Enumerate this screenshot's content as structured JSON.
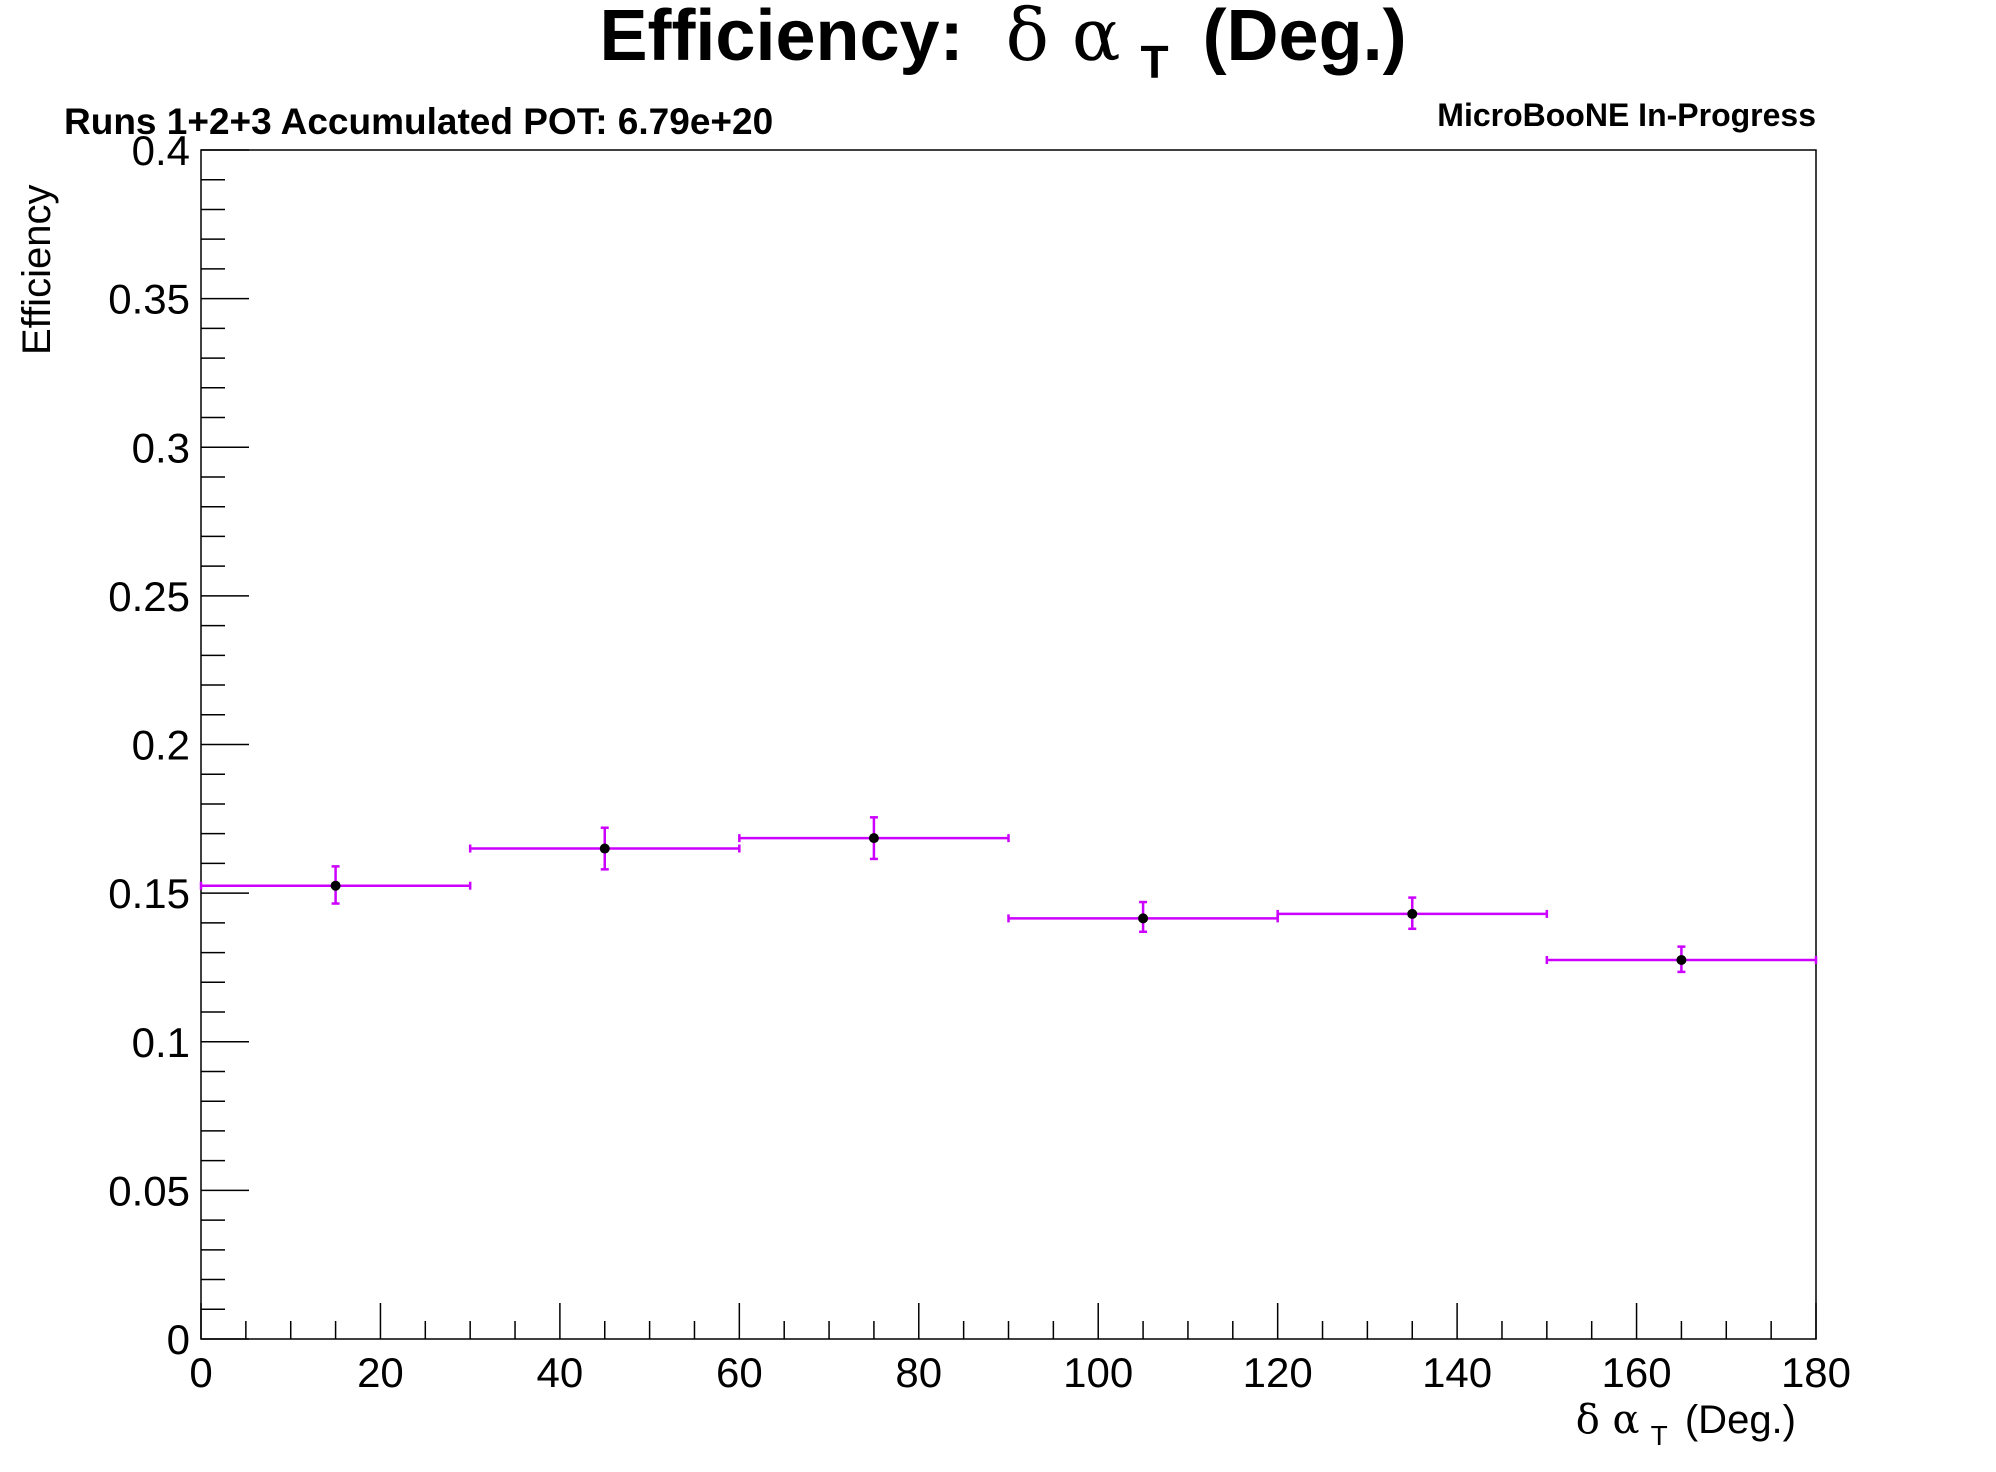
{
  "chart_data": {
    "type": "scatter",
    "title_main": "Efficiency:",
    "title_symbol": "δ α",
    "title_sub": "T",
    "title_unit": "(Deg.)",
    "subtitle_left": "Runs 1+2+3 Accumulated POT: 6.79e+20",
    "subtitle_right": "MicroBooNE In-Progress",
    "xlabel_symbol": "δ α",
    "xlabel_sub": "T",
    "xlabel_unit": "(Deg.)",
    "ylabel": "Efficiency",
    "xlim": [
      0,
      180
    ],
    "ylim": [
      0,
      0.4
    ],
    "x_ticks": [
      0,
      20,
      40,
      60,
      80,
      100,
      120,
      140,
      160,
      180
    ],
    "x_tick_labels": [
      "0",
      "20",
      "40",
      "60",
      "80",
      "100",
      "120",
      "140",
      "160",
      "180"
    ],
    "y_ticks": [
      0,
      0.05,
      0.1,
      0.15,
      0.2,
      0.25,
      0.3,
      0.35,
      0.4
    ],
    "y_tick_labels": [
      "0",
      "0.05",
      "0.1",
      "0.15",
      "0.2",
      "0.25",
      "0.3",
      "0.35",
      "0.4"
    ],
    "grid": false,
    "errorbar_color": "#cc00ff",
    "marker_color": "#000000",
    "points": [
      {
        "x": 15,
        "xlow": 0,
        "xhigh": 30,
        "y": 0.1525,
        "ylow": 0.1465,
        "yhigh": 0.159
      },
      {
        "x": 45,
        "xlow": 30,
        "xhigh": 60,
        "y": 0.165,
        "ylow": 0.158,
        "yhigh": 0.172
      },
      {
        "x": 75,
        "xlow": 60,
        "xhigh": 90,
        "y": 0.1685,
        "ylow": 0.1615,
        "yhigh": 0.1755
      },
      {
        "x": 105,
        "xlow": 90,
        "xhigh": 120,
        "y": 0.1415,
        "ylow": 0.137,
        "yhigh": 0.147
      },
      {
        "x": 135,
        "xlow": 120,
        "xhigh": 150,
        "y": 0.143,
        "ylow": 0.138,
        "yhigh": 0.1485
      },
      {
        "x": 165,
        "xlow": 150,
        "xhigh": 180,
        "y": 0.1275,
        "ylow": 0.1235,
        "yhigh": 0.132
      }
    ]
  }
}
